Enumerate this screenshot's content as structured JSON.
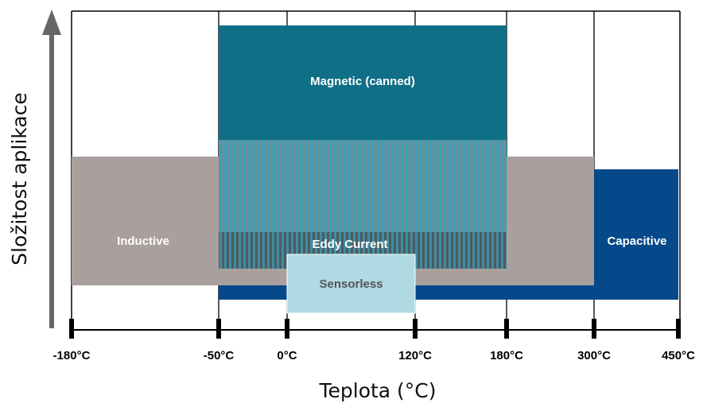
{
  "chart_data": {
    "type": "range",
    "x_axis": {
      "label": "Teplota (°C)",
      "ticks": [
        {
          "value": -180,
          "label": "-180°C"
        },
        {
          "value": -50,
          "label": "-50°C"
        },
        {
          "value": 0,
          "label": "0°C"
        },
        {
          "value": 120,
          "label": "120°C"
        },
        {
          "value": 180,
          "label": "180°C"
        },
        {
          "value": 300,
          "label": "300°C"
        },
        {
          "value": 450,
          "label": "450°C"
        }
      ]
    },
    "y_axis": {
      "label": "Složitost aplikace"
    },
    "bands": [
      {
        "name": "Magnetic (canned)",
        "x_min": -50,
        "x_max": 180,
        "color": "#0f6f87"
      },
      {
        "name": "Inductive",
        "x_min": -180,
        "x_max": 300,
        "color": "#a9a09d"
      },
      {
        "name": "Capacitive",
        "x_min": -50,
        "x_max": 450,
        "color": "#06498a"
      },
      {
        "name": "Eddy Current",
        "x_min": -50,
        "x_max": 180,
        "color": "#3c9bb0"
      },
      {
        "name": "Sensorless",
        "x_min": 0,
        "x_max": 120,
        "color": "#b0d9e4"
      }
    ]
  }
}
